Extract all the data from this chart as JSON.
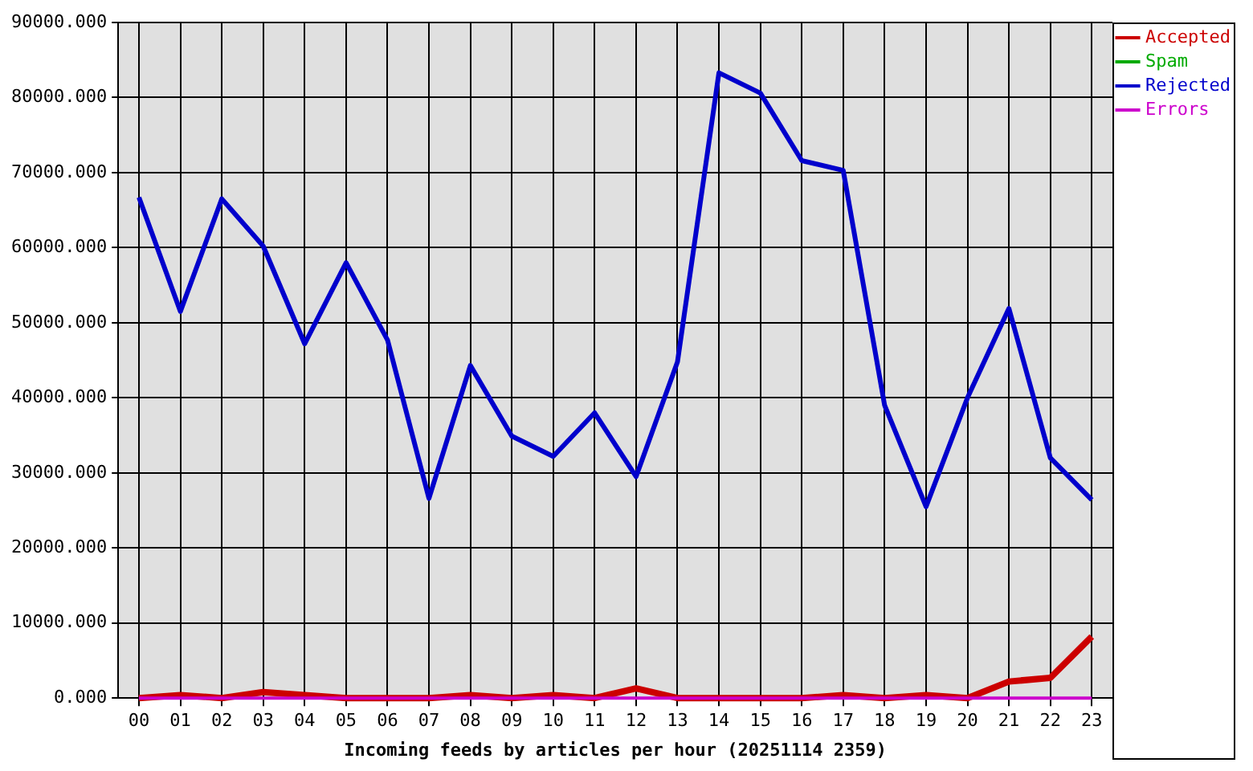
{
  "chart_data": {
    "type": "line",
    "xlabel": "Incoming feeds by articles per hour (20251114 2359)",
    "categories": [
      "00",
      "01",
      "02",
      "03",
      "04",
      "05",
      "06",
      "07",
      "08",
      "09",
      "10",
      "11",
      "12",
      "13",
      "14",
      "15",
      "16",
      "17",
      "18",
      "19",
      "20",
      "21",
      "22",
      "23"
    ],
    "series": [
      {
        "name": "Accepted",
        "color": "#cc0000",
        "values": [
          0,
          400,
          0,
          800,
          400,
          0,
          0,
          0,
          400,
          0,
          400,
          0,
          1300,
          0,
          0,
          0,
          0,
          400,
          0,
          400,
          0,
          2200,
          2700,
          8200
        ]
      },
      {
        "name": "Spam",
        "color": "#00aa00",
        "values": [
          null,
          null,
          null,
          null,
          null,
          null,
          null,
          null,
          null,
          null,
          null,
          null,
          null,
          null,
          null,
          null,
          null,
          null,
          null,
          null,
          null,
          null,
          null,
          null
        ]
      },
      {
        "name": "Rejected",
        "color": "#0000cc",
        "values": [
          66700,
          51500,
          66500,
          60200,
          47200,
          58000,
          47700,
          26600,
          44300,
          34900,
          32200,
          38000,
          29500,
          44800,
          83300,
          80600,
          71600,
          70300,
          39000,
          25500,
          40000,
          51900,
          32000,
          26400
        ]
      },
      {
        "name": "Errors",
        "color": "#cc00cc",
        "values": [
          0,
          0,
          0,
          0,
          0,
          0,
          0,
          0,
          0,
          0,
          0,
          0,
          0,
          0,
          0,
          0,
          0,
          0,
          0,
          0,
          0,
          0,
          0,
          0
        ]
      }
    ],
    "ylim": [
      0,
      90000
    ],
    "yticks": [
      {
        "value": 0,
        "label": "0.000"
      },
      {
        "value": 10000,
        "label": "10000.000"
      },
      {
        "value": 20000,
        "label": "20000.000"
      },
      {
        "value": 30000,
        "label": "30000.000"
      },
      {
        "value": 40000,
        "label": "40000.000"
      },
      {
        "value": 50000,
        "label": "50000.000"
      },
      {
        "value": 60000,
        "label": "60000.000"
      },
      {
        "value": 70000,
        "label": "70000.000"
      },
      {
        "value": 80000,
        "label": "80000.000"
      },
      {
        "value": 90000,
        "label": "90000.000"
      }
    ],
    "grid": true,
    "legend": "top right"
  }
}
